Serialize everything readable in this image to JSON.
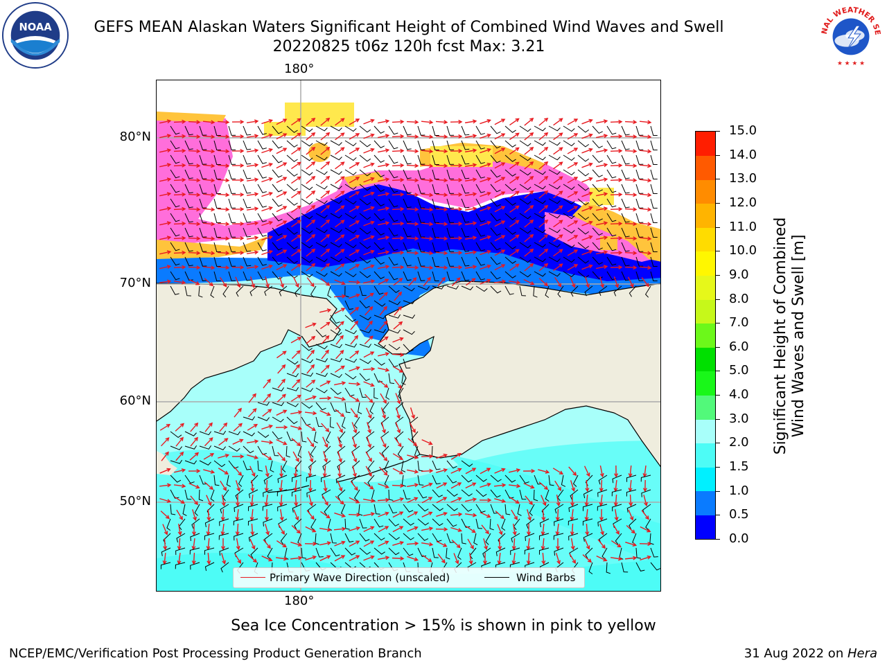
{
  "header": {
    "title_line1": "GEFS MEAN Alaskan Waters Significant Height of Combined Wind Waves and Swell",
    "title_line2": "20220825 t06z 120h fcst   Max: 3.21"
  },
  "logos": {
    "noaa_text": "NOAA",
    "nws_text": "NATIONAL WEATHER SERVICE"
  },
  "map": {
    "lon_label_top": "180°",
    "lon_label_bottom": "180°",
    "lat_labels": [
      "80°N",
      "70°N",
      "60°N",
      "50°N"
    ],
    "legend": {
      "wave_direction": "Primary Wave Direction (unscaled)",
      "wind_barbs": "Wind Barbs"
    },
    "colors": {
      "land": "#efedde",
      "open_water_light": "#a8fffa",
      "open_water_mid": "#4dfcf6",
      "calm_blue": "#0a7bff",
      "deep_blue": "#0000ff",
      "ice_pink": "#ff6edb",
      "ice_orange": "#ffc43c",
      "ice_yellow": "#ffe84d",
      "wave_arrow": "#e8191f",
      "wind_barb": "#000000"
    }
  },
  "colorbar": {
    "title_line1": "Significant Height of Combined",
    "title_line2": "Wind Waves and Swell [m]",
    "ticks": [
      "0.0",
      "0.5",
      "1.0",
      "1.5",
      "2.0",
      "3.0",
      "4.0",
      "5.0",
      "6.0",
      "7.0",
      "8.0",
      "9.0",
      "10.0",
      "11.0",
      "12.0",
      "13.0",
      "14.0",
      "15.0"
    ],
    "colors": [
      "#0000ff",
      "#0a7bff",
      "#00f0ff",
      "#4dfcf6",
      "#a8fffa",
      "#52f97a",
      "#19f719",
      "#00e000",
      "#6cf81a",
      "#c6f81a",
      "#e6f81a",
      "#fff700",
      "#ffdc00",
      "#ffb400",
      "#ff8c00",
      "#ff5a00",
      "#ff1e00"
    ]
  },
  "footer": {
    "sea_ice_note": "Sea Ice Concentration > 15% is shown in pink to yellow",
    "left": "NCEP/EMC/Verification Post Processing Product Generation Branch",
    "right_date": "31 Aug 2022 on ",
    "right_host": "Hera"
  }
}
